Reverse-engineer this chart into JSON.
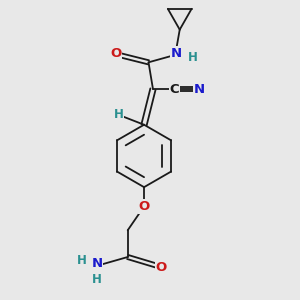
{
  "bg_color": "#e8e8e8",
  "bond_color": "#1a1a1a",
  "bond_width": 1.3,
  "atom_colors": {
    "C": "#1a1a1a",
    "N": "#1a1acc",
    "O": "#cc1a1a",
    "H": "#2a9090"
  },
  "font_size_main": 9.5,
  "font_size_sub": 8.5,
  "xlim": [
    0,
    10
  ],
  "ylim": [
    0,
    10
  ]
}
